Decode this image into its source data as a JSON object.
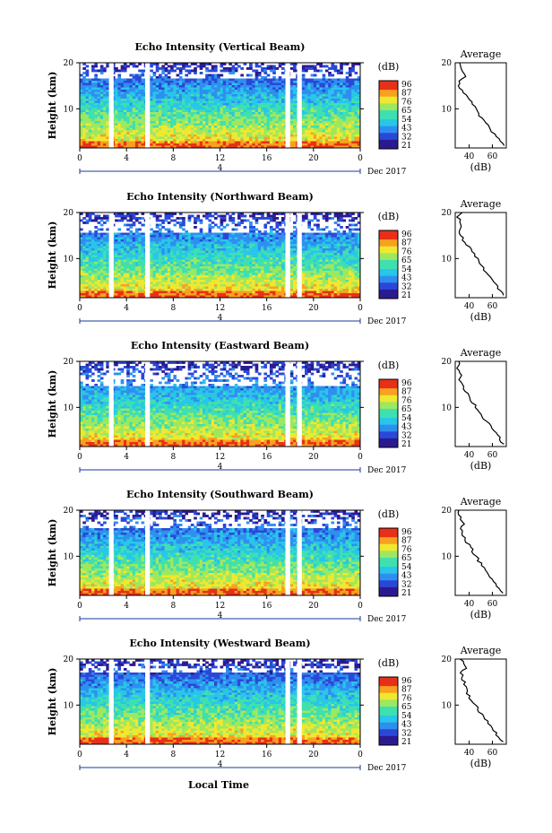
{
  "figure": {
    "x_axis_label": "Local Time",
    "date_label": "Dec 2017",
    "day_label": "4",
    "y_axis_label": "Height (km)",
    "colorbar_unit": "(dB)",
    "average_title": "Average",
    "average_xlabel": "(dB)"
  },
  "chart_data": [
    {
      "type": "heatmap",
      "title": "Echo Intensity (Vertical Beam)",
      "xlabel": "Local Time",
      "ylabel": "Height (km)",
      "xlim": [
        0,
        24
      ],
      "ylim": [
        1.5,
        20
      ],
      "x_ticks": [
        "0",
        "4",
        "8",
        "12",
        "16",
        "20",
        "0"
      ],
      "y_ticks": [
        "10",
        "20"
      ],
      "colorbar": {
        "label": "(dB)",
        "ticks": [
          "96",
          "87",
          "76",
          "65",
          "54",
          "43",
          "32",
          "21"
        ],
        "range": [
          21,
          96
        ]
      },
      "data_gaps_hours": [
        [
          2.5,
          2.9
        ],
        [
          5.6,
          6.0
        ],
        [
          17.6,
          18.0
        ],
        [
          18.6,
          19.0
        ]
      ],
      "top_cutoff_km": 16.5,
      "average_profile": {
        "title": "Average",
        "xlabel": "(dB)",
        "x_ticks": [
          "40",
          "60"
        ],
        "y_ticks": [
          "10",
          "20"
        ],
        "xlim": [
          28,
          72
        ],
        "ylim": [
          1.5,
          20
        ],
        "profile": [
          [
            70,
            2
          ],
          [
            66,
            3
          ],
          [
            63,
            4
          ],
          [
            60,
            5
          ],
          [
            57,
            6
          ],
          [
            54,
            7
          ],
          [
            51,
            8
          ],
          [
            48,
            9
          ],
          [
            46,
            10
          ],
          [
            43,
            11
          ],
          [
            40,
            12
          ],
          [
            37,
            13
          ],
          [
            34,
            14
          ],
          [
            31,
            15
          ],
          [
            32,
            16
          ],
          [
            37,
            17
          ],
          [
            34,
            18
          ],
          [
            32,
            19
          ],
          [
            31,
            20
          ]
        ]
      }
    },
    {
      "type": "heatmap",
      "title": "Echo Intensity (Northward Beam)",
      "xlabel": "Local Time",
      "ylabel": "Height (km)",
      "xlim": [
        0,
        24
      ],
      "ylim": [
        1.5,
        20
      ],
      "x_ticks": [
        "0",
        "4",
        "8",
        "12",
        "16",
        "20",
        "0"
      ],
      "y_ticks": [
        "10",
        "20"
      ],
      "colorbar": {
        "label": "(dB)",
        "ticks": [
          "96",
          "87",
          "76",
          "65",
          "54",
          "43",
          "32",
          "21"
        ],
        "range": [
          21,
          96
        ]
      },
      "data_gaps_hours": [
        [
          2.5,
          2.9
        ],
        [
          5.6,
          6.0
        ],
        [
          17.6,
          18.0
        ],
        [
          18.6,
          19.0
        ]
      ],
      "top_cutoff_km": 15.5,
      "average_profile": {
        "title": "Average",
        "xlabel": "(dB)",
        "x_ticks": [
          "40",
          "60"
        ],
        "y_ticks": [
          "10",
          "20"
        ],
        "xlim": [
          28,
          72
        ],
        "ylim": [
          1.5,
          20
        ],
        "profile": [
          [
            70,
            2
          ],
          [
            67,
            3
          ],
          [
            64,
            4
          ],
          [
            61,
            5
          ],
          [
            58,
            6
          ],
          [
            55,
            7
          ],
          [
            52,
            8
          ],
          [
            49,
            9
          ],
          [
            47,
            10
          ],
          [
            44,
            11
          ],
          [
            41,
            12
          ],
          [
            38,
            13
          ],
          [
            35,
            14
          ],
          [
            33,
            15
          ],
          [
            31,
            16
          ],
          [
            34,
            17
          ],
          [
            32,
            18
          ],
          [
            30,
            19
          ],
          [
            33,
            20
          ]
        ]
      }
    },
    {
      "type": "heatmap",
      "title": "Echo Intensity (Eastward Beam)",
      "xlabel": "Local Time",
      "ylabel": "Height (km)",
      "xlim": [
        0,
        24
      ],
      "ylim": [
        1.5,
        20
      ],
      "x_ticks": [
        "0",
        "4",
        "8",
        "12",
        "16",
        "20",
        "0"
      ],
      "y_ticks": [
        "10",
        "20"
      ],
      "colorbar": {
        "label": "(dB)",
        "ticks": [
          "96",
          "87",
          "76",
          "65",
          "54",
          "43",
          "32",
          "21"
        ],
        "range": [
          21,
          96
        ]
      },
      "data_gaps_hours": [
        [
          2.5,
          2.9
        ],
        [
          5.6,
          6.0
        ],
        [
          17.6,
          18.0
        ],
        [
          18.6,
          19.0
        ]
      ],
      "top_cutoff_km": 14.5,
      "average_profile": {
        "title": "Average",
        "xlabel": "(dB)",
        "x_ticks": [
          "40",
          "60"
        ],
        "y_ticks": [
          "10",
          "20"
        ],
        "xlim": [
          28,
          72
        ],
        "ylim": [
          1.5,
          20
        ],
        "profile": [
          [
            70,
            2
          ],
          [
            67,
            3
          ],
          [
            64,
            4
          ],
          [
            61,
            5
          ],
          [
            58,
            6
          ],
          [
            55,
            7
          ],
          [
            52,
            8
          ],
          [
            49,
            9
          ],
          [
            46,
            10
          ],
          [
            43,
            11
          ],
          [
            41,
            12
          ],
          [
            39,
            13
          ],
          [
            36,
            14
          ],
          [
            34,
            15
          ],
          [
            32,
            16
          ],
          [
            33,
            17
          ],
          [
            31,
            18
          ],
          [
            30,
            19
          ],
          [
            31,
            20
          ]
        ]
      }
    },
    {
      "type": "heatmap",
      "title": "Echo Intensity (Southward Beam)",
      "xlabel": "Local Time",
      "ylabel": "Height (km)",
      "xlim": [
        0,
        24
      ],
      "ylim": [
        1.5,
        20
      ],
      "x_ticks": [
        "0",
        "4",
        "8",
        "12",
        "16",
        "20",
        "0"
      ],
      "y_ticks": [
        "10",
        "20"
      ],
      "colorbar": {
        "label": "(dB)",
        "ticks": [
          "96",
          "87",
          "76",
          "65",
          "54",
          "43",
          "32",
          "21"
        ],
        "range": [
          21,
          96
        ]
      },
      "data_gaps_hours": [
        [
          2.5,
          2.9
        ],
        [
          5.6,
          6.0
        ],
        [
          17.6,
          18.0
        ],
        [
          18.6,
          19.0
        ]
      ],
      "top_cutoff_km": 16.0,
      "average_profile": {
        "title": "Average",
        "xlabel": "(dB)",
        "x_ticks": [
          "40",
          "60"
        ],
        "y_ticks": [
          "10",
          "20"
        ],
        "xlim": [
          28,
          72
        ],
        "ylim": [
          1.5,
          20
        ],
        "profile": [
          [
            69,
            2
          ],
          [
            66,
            3
          ],
          [
            63,
            4
          ],
          [
            60,
            5
          ],
          [
            57,
            6
          ],
          [
            54,
            7
          ],
          [
            51,
            8
          ],
          [
            48,
            9
          ],
          [
            46,
            10
          ],
          [
            43,
            11
          ],
          [
            41,
            12
          ],
          [
            38,
            13
          ],
          [
            36,
            14
          ],
          [
            34,
            15
          ],
          [
            32,
            16
          ],
          [
            36,
            17
          ],
          [
            33,
            18
          ],
          [
            31,
            19
          ],
          [
            32,
            20
          ]
        ]
      }
    },
    {
      "type": "heatmap",
      "title": "Echo Intensity (Westward Beam)",
      "xlabel": "Local Time",
      "ylabel": "Height (km)",
      "xlim": [
        0,
        24
      ],
      "ylim": [
        1.5,
        20
      ],
      "x_ticks": [
        "0",
        "4",
        "8",
        "12",
        "16",
        "20",
        "0"
      ],
      "y_ticks": [
        "10",
        "20"
      ],
      "colorbar": {
        "label": "(dB)",
        "ticks": [
          "96",
          "87",
          "76",
          "65",
          "54",
          "43",
          "32",
          "21"
        ],
        "range": [
          21,
          96
        ]
      },
      "data_gaps_hours": [
        [
          2.5,
          2.9
        ],
        [
          5.6,
          6.0
        ],
        [
          17.6,
          18.0
        ],
        [
          18.6,
          19.0
        ]
      ],
      "top_cutoff_km": 17.0,
      "average_profile": {
        "title": "Average",
        "xlabel": "(dB)",
        "x_ticks": [
          "40",
          "60"
        ],
        "y_ticks": [
          "10",
          "20"
        ],
        "xlim": [
          28,
          72
        ],
        "ylim": [
          1.5,
          20
        ],
        "profile": [
          [
            69,
            2
          ],
          [
            66,
            3
          ],
          [
            63,
            4
          ],
          [
            60,
            5
          ],
          [
            57,
            6
          ],
          [
            54,
            7
          ],
          [
            51,
            8
          ],
          [
            48,
            9
          ],
          [
            45,
            10
          ],
          [
            42,
            11
          ],
          [
            40,
            12
          ],
          [
            38,
            13
          ],
          [
            37,
            14
          ],
          [
            36,
            15
          ],
          [
            34,
            16
          ],
          [
            33,
            17
          ],
          [
            38,
            18
          ],
          [
            35,
            19
          ],
          [
            33,
            20
          ]
        ]
      }
    }
  ],
  "colors": {
    "colormap": [
      "#2b1a8f",
      "#2a48d8",
      "#2f8ff0",
      "#28c6e8",
      "#3fe0b0",
      "#9ee860",
      "#f0e830",
      "#f8a020",
      "#e83018"
    ]
  }
}
